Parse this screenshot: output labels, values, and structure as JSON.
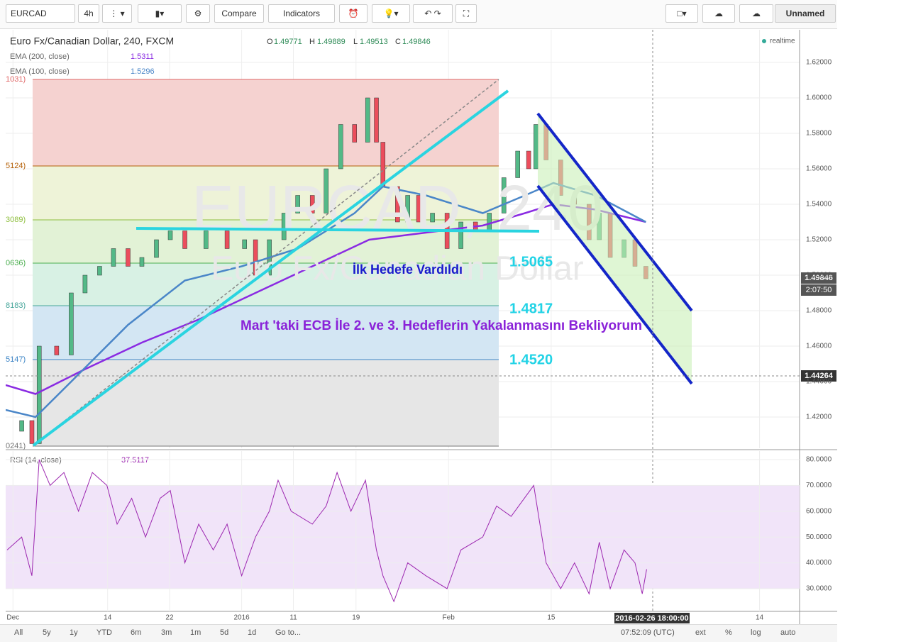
{
  "toolbar": {
    "symbol": "EURCAD",
    "interval": "4h",
    "compare": "Compare",
    "indicators": "Indicators",
    "layout": "Unnamed"
  },
  "legend": {
    "title": "Euro Fx/Canadian Dollar, 240, FXCM",
    "ohlc": [
      "O",
      "1.49771",
      "H",
      "1.49889",
      "L",
      "1.49513",
      "C",
      "1.49846"
    ],
    "realtime": "realtime",
    "ema200_value": "1.5311",
    "ema100_value": "1.5296",
    "rsi_label": "RSI (14, close)",
    "rsi_value": "37.5117"
  },
  "watermark": [
    "EURCAD, 240",
    "Euro Fx/Canadian Dollar"
  ],
  "annotations": {
    "reached": "İlk Hedefe Vardıldı",
    "t1": "1.5065",
    "t2": "1.4817",
    "note": "Mart 'taki ECB İle 2. ve 3. Hedeflerin Yakalanmasını Bekliyorum",
    "t3": "1.4520"
  },
  "price_labels": {
    "last": "1.49846",
    "countdown": "2:07:50",
    "crosshair": "1.44264",
    "crosshair_time": "2016-02-26 18:00:00"
  },
  "bottom": {
    "ranges": [
      "All",
      "5y",
      "1y",
      "YTD",
      "6m",
      "3m",
      "1m",
      "5d",
      "1d"
    ],
    "goto": "Go to...",
    "clock": "07:52:09 (UTC)",
    "options": [
      "ext",
      "%",
      "log",
      "auto"
    ]
  },
  "chart_data": [
    {
      "type": "candlestick",
      "xlim": [
        -1,
        108
      ],
      "ylim": [
        1.4024,
        1.6384
      ],
      "up_color": "#53b987",
      "down_color": "#eb4d5c",
      "xticks": [
        {
          "value": 0,
          "label": "Dec"
        },
        {
          "value": 13,
          "label": "14"
        },
        {
          "value": 21.5,
          "label": "22"
        },
        {
          "value": 31.4,
          "label": "2016"
        },
        {
          "value": 38.5,
          "label": "11"
        },
        {
          "value": 47.1,
          "label": "19"
        },
        {
          "value": 59.8,
          "label": "Feb"
        },
        {
          "value": 73.9,
          "label": "15"
        },
        {
          "value": 102.5,
          "label": "14"
        }
      ],
      "yticks": [
        {
          "value": 1.42,
          "label": "1.42000"
        },
        {
          "value": 1.44,
          "label": "1.44000"
        },
        {
          "value": 1.46,
          "label": "1.46000"
        },
        {
          "value": 1.48,
          "label": "1.48000"
        },
        {
          "value": 1.5,
          "label": "1.50000"
        },
        {
          "value": 1.52,
          "label": "1.52000"
        },
        {
          "value": 1.54,
          "label": "1.54000"
        },
        {
          "value": 1.56,
          "label": "1.56000"
        },
        {
          "value": 1.58,
          "label": "1.58000"
        },
        {
          "value": 1.6,
          "label": "1.60000"
        },
        {
          "value": 1.62,
          "label": "1.62000"
        }
      ],
      "x": [
        -0.8,
        1.2,
        2.6,
        3.6,
        6.0,
        8.0,
        9.9,
        11.9,
        13.8,
        15.8,
        17.7,
        19.7,
        21.6,
        23.6,
        26.5,
        29.4,
        31.8,
        33.3,
        35.2,
        37.2,
        39.1,
        41.1,
        43.0,
        45.0,
        46.9,
        48.7,
        49.9,
        50.8,
        52.8,
        54.2,
        55.7,
        57.6,
        59.6,
        61.5,
        63.5,
        65.4,
        67.4,
        69.3,
        70.8,
        71.8,
        73.2,
        75.2,
        77.1,
        79.1,
        80.5,
        82.0,
        83.9,
        85.4,
        86.9
      ],
      "values": [
        1.412,
        1.418,
        1.405,
        1.46,
        1.455,
        1.49,
        1.5,
        1.505,
        1.515,
        1.505,
        1.51,
        1.52,
        1.525,
        1.515,
        1.525,
        1.515,
        1.52,
        1.5,
        1.52,
        1.535,
        1.545,
        1.535,
        1.56,
        1.585,
        1.575,
        1.6,
        1.575,
        1.55,
        1.53,
        1.545,
        1.53,
        1.535,
        1.515,
        1.53,
        1.525,
        1.535,
        1.555,
        1.57,
        1.56,
        1.585,
        1.565,
        1.545,
        1.54,
        1.52,
        1.535,
        1.51,
        1.52,
        1.505,
        1.498
      ],
      "series": [
        {
          "name": "EMA (200, close)",
          "color": "#8a2be2",
          "x": [
            -1.0,
            3.1,
            9.9,
            17.7,
            25.5,
            33.3,
            41.1,
            48.9,
            56.7,
            64.5,
            70.3,
            74.2,
            80.0,
            86.9
          ],
          "values": [
            1.438,
            1.433,
            1.447,
            1.462,
            1.475,
            1.49,
            1.505,
            1.52,
            1.524,
            1.528,
            1.535,
            1.54,
            1.537,
            1.53
          ]
        },
        {
          "name": "EMA (100, close)",
          "color": "#4a86c8",
          "x": [
            -1.0,
            3.1,
            8.0,
            15.8,
            23.6,
            31.4,
            39.1,
            46.9,
            50.8,
            56.7,
            64.5,
            70.3,
            74.2,
            80.0,
            86.9
          ],
          "values": [
            1.424,
            1.42,
            1.44,
            1.472,
            1.497,
            1.505,
            1.515,
            1.535,
            1.55,
            1.545,
            1.535,
            1.545,
            1.552,
            1.545,
            1.53
          ]
        }
      ],
      "fib_x": [
        2.7,
        66.7
      ],
      "fib_levels": [
        {
          "value": 1.6104,
          "label": "1031)",
          "color": "#e06666",
          "fill": "#f5d2d0"
        },
        {
          "value": 1.5616,
          "label": "5124)",
          "color": "#b45f06",
          "fill": "#eef3d8"
        },
        {
          "value": 1.5312,
          "label": "3089)",
          "color": "#8fbf3f",
          "fill": "#e2f2d6"
        },
        {
          "value": 1.5068,
          "label": "0636)",
          "color": "#4caf50",
          "fill": "#d8f1e4"
        },
        {
          "value": 1.4828,
          "label": "8183)",
          "color": "#45a59a",
          "fill": "#d3e6f3"
        },
        {
          "value": 1.4524,
          "label": "5147)",
          "color": "#3d85c6",
          "fill": "#e6e6e6"
        },
        {
          "value": 1.4036,
          "label": "0241)",
          "color": "#777777",
          "fill": "#e6e6e6"
        }
      ]
    },
    {
      "type": "line",
      "xlim": [
        -1,
        108
      ],
      "ylim": [
        21.2,
        83.3
      ],
      "band": [
        30,
        70
      ],
      "band_color": "#f1e4f9",
      "yticks": [
        {
          "value": 30,
          "label": "30.0000"
        },
        {
          "value": 40,
          "label": "40.0000"
        },
        {
          "value": 50,
          "label": "50.0000"
        },
        {
          "value": 60,
          "label": "60.0000"
        },
        {
          "value": 70,
          "label": "70.0000"
        },
        {
          "value": 80,
          "label": "80.0000"
        }
      ],
      "series": [
        {
          "name": "RSI (14, close)",
          "color": "#9c27b0",
          "x": [
            -0.8,
            1.2,
            2.6,
            3.6,
            5.1,
            7.0,
            9.0,
            10.9,
            12.9,
            14.3,
            16.3,
            18.2,
            20.2,
            21.6,
            23.6,
            25.5,
            27.5,
            29.4,
            31.4,
            33.3,
            35.2,
            36.4,
            38.2,
            41.1,
            43.0,
            44.5,
            46.4,
            48.4,
            49.9,
            50.8,
            52.3,
            54.2,
            56.7,
            59.6,
            61.5,
            64.5,
            66.4,
            68.4,
            71.5,
            73.2,
            75.2,
            77.1,
            79.1,
            80.5,
            82.0,
            83.9,
            85.4,
            86.4,
            87.0
          ],
          "values": [
            45,
            50,
            35,
            80,
            70,
            75,
            60,
            75,
            70,
            55,
            65,
            50,
            65,
            68,
            40,
            55,
            45,
            55,
            35,
            50,
            60,
            72,
            60,
            55,
            62,
            75,
            60,
            72,
            45,
            35,
            25,
            40,
            35,
            30,
            45,
            50,
            62,
            58,
            70,
            40,
            30,
            40,
            28,
            48,
            30,
            45,
            40,
            28,
            37.5117
          ]
        }
      ]
    }
  ]
}
